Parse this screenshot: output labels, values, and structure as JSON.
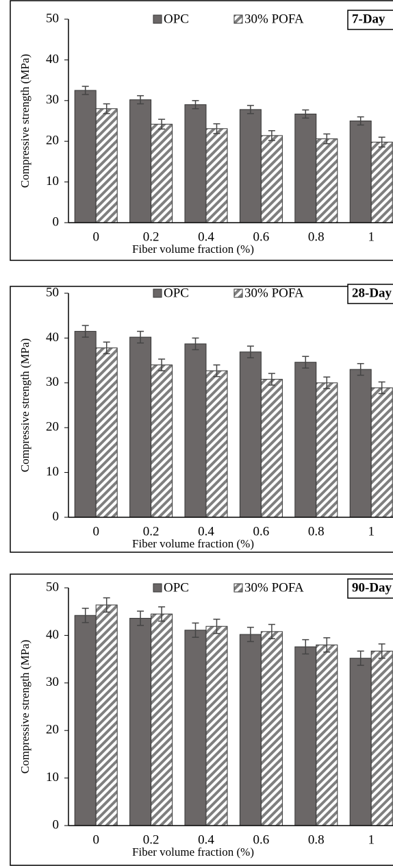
{
  "chart_data": [
    {
      "type": "bar",
      "annotation": "7-Day",
      "x_label": "Fiber volume fraction (%)",
      "y_label": "Compressive strength (MPa)",
      "categories": [
        "0",
        "0.2",
        "0.4",
        "0.6",
        "0.8",
        "1"
      ],
      "series": [
        {
          "name": "OPC",
          "color": "#6b6767",
          "hatch": false,
          "values": [
            32.5,
            30.2,
            29,
            27.8,
            26.7,
            25
          ],
          "errors": [
            1,
            1,
            1,
            1,
            1,
            1
          ]
        },
        {
          "name": "30% POFA",
          "color": "#7f7f7f",
          "hatch": true,
          "values": [
            28,
            24.2,
            23.1,
            21.4,
            20.6,
            19.8
          ],
          "errors": [
            1.2,
            1.2,
            1.2,
            1.2,
            1.2,
            1.2
          ]
        }
      ],
      "ylim": [
        0,
        50
      ],
      "yticks": [
        0,
        10,
        20,
        30,
        40,
        50
      ]
    },
    {
      "type": "bar",
      "annotation": "28-Day",
      "x_label": "Fiber volume fraction (%)",
      "y_label": "Compressive strength (MPa)",
      "categories": [
        "0",
        "0.2",
        "0.4",
        "0.6",
        "0.8",
        "1"
      ],
      "series": [
        {
          "name": "OPC",
          "color": "#6b6767",
          "hatch": false,
          "values": [
            41.5,
            40.2,
            38.7,
            36.9,
            34.6,
            33
          ],
          "errors": [
            1.3,
            1.3,
            1.3,
            1.3,
            1.3,
            1.3
          ]
        },
        {
          "name": "30% POFA",
          "color": "#7f7f7f",
          "hatch": true,
          "values": [
            37.8,
            34,
            32.7,
            30.8,
            30,
            28.9
          ],
          "errors": [
            1.3,
            1.3,
            1.3,
            1.3,
            1.3,
            1.3
          ]
        }
      ],
      "ylim": [
        0,
        50
      ],
      "yticks": [
        0,
        10,
        20,
        30,
        40,
        50
      ]
    },
    {
      "type": "bar",
      "annotation": "90-Day",
      "x_label": "Fiber volume fraction (%)",
      "y_label": "Compressive strength (MPa)",
      "categories": [
        "0",
        "0.2",
        "0.4",
        "0.6",
        "0.8",
        "1"
      ],
      "series": [
        {
          "name": "OPC",
          "color": "#6b6767",
          "hatch": false,
          "values": [
            44.2,
            43.6,
            41.1,
            40.2,
            37.6,
            35.2
          ],
          "errors": [
            1.5,
            1.5,
            1.5,
            1.5,
            1.5,
            1.5
          ]
        },
        {
          "name": "30% POFA",
          "color": "#7f7f7f",
          "hatch": true,
          "values": [
            46.4,
            44.5,
            41.9,
            40.8,
            38,
            36.7
          ],
          "errors": [
            1.5,
            1.5,
            1.5,
            1.5,
            1.5,
            1.5
          ]
        }
      ],
      "ylim": [
        0,
        50
      ],
      "yticks": [
        0,
        10,
        20,
        30,
        40,
        50
      ]
    }
  ]
}
